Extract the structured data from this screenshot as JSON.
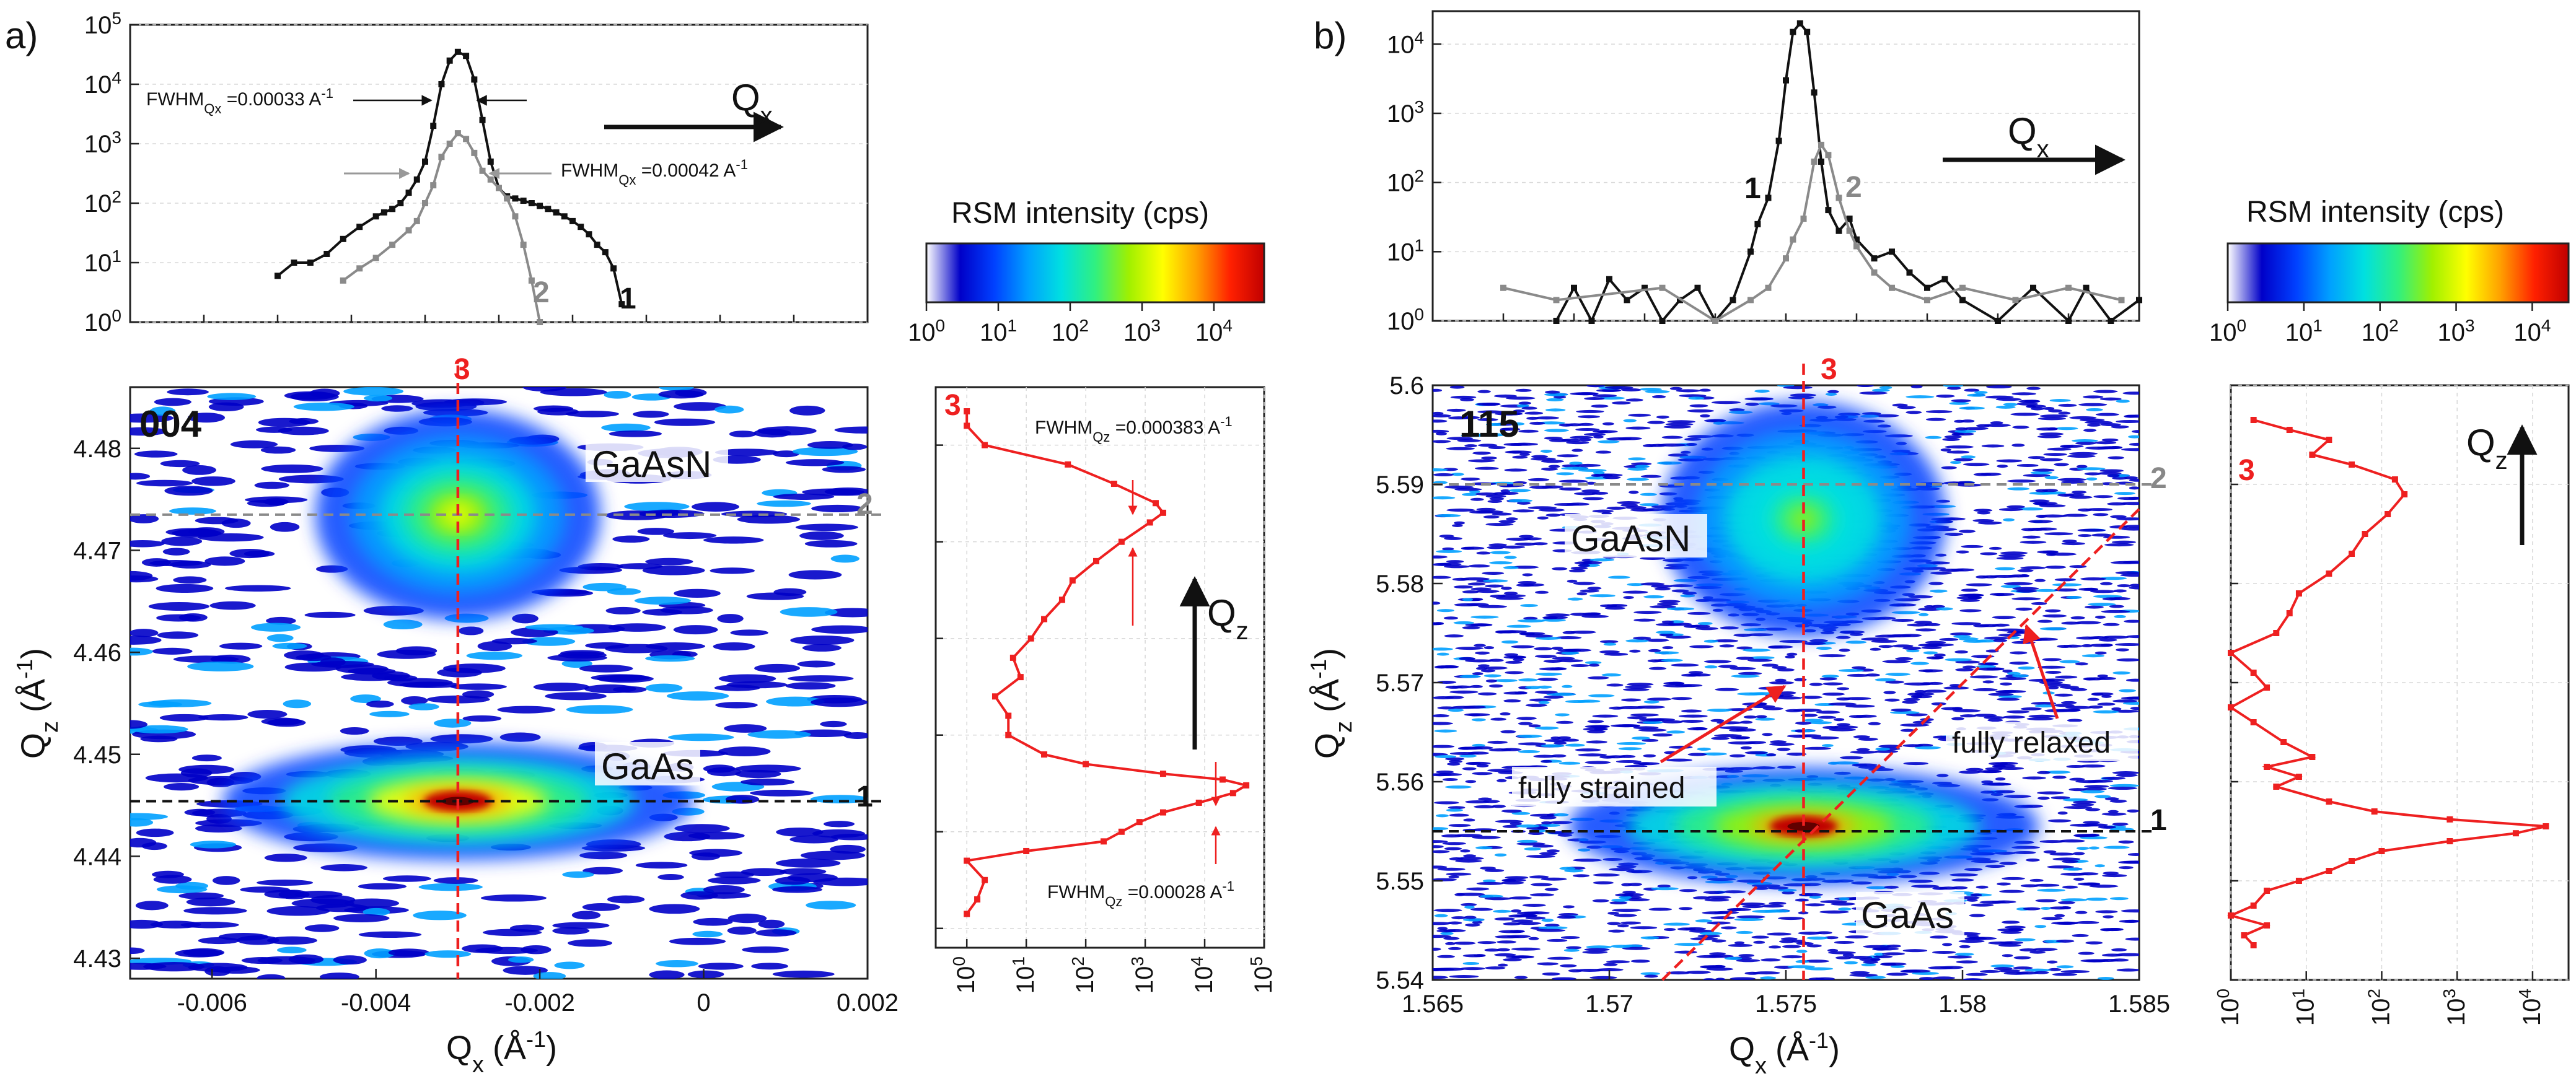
{
  "colors": {
    "black_series": "#111111",
    "grey_series": "#8a8a8a",
    "red_series": "#ee2020",
    "colormap": [
      "#ffffff",
      "#0000c8",
      "#0040ff",
      "#00a0ff",
      "#00e0e0",
      "#30f080",
      "#a0f000",
      "#ffff00",
      "#ffa000",
      "#ff2000",
      "#c00000"
    ]
  },
  "chart_data": [
    {
      "id": "a_top",
      "panel": "a",
      "type": "line",
      "title": "",
      "xlabel": "",
      "ylabel": "",
      "xlim": [
        -0.007,
        0.002
      ],
      "ylim": [
        1,
        100000
      ],
      "yscale": "log",
      "yticks": [
        1,
        10,
        100,
        1000,
        10000,
        100000
      ],
      "ytick_labels": [
        "10",
        "10",
        "10",
        "10",
        "10",
        "10"
      ],
      "ytick_exps": [
        "0",
        "1",
        "2",
        "3",
        "4",
        "5"
      ],
      "arrow_label": "Q",
      "arrow_sub": "x",
      "series": [
        {
          "name": "1",
          "color": "#111111",
          "x": [
            -0.0052,
            -0.005,
            -0.0048,
            -0.0046,
            -0.0044,
            -0.0042,
            -0.004,
            -0.0039,
            -0.0038,
            -0.0037,
            -0.0036,
            -0.0035,
            -0.0034,
            -0.0033,
            -0.0032,
            -0.0031,
            -0.003,
            -0.0029,
            -0.0028,
            -0.0027,
            -0.0026,
            -0.0025,
            -0.0024,
            -0.0023,
            -0.0022,
            -0.0021,
            -0.002,
            -0.0019,
            -0.0018,
            -0.0017,
            -0.0016,
            -0.0015,
            -0.0014,
            -0.0013,
            -0.0012,
            -0.0011,
            -0.001
          ],
          "y": [
            6,
            10,
            10,
            14,
            25,
            40,
            60,
            70,
            80,
            100,
            150,
            250,
            500,
            2000,
            10000,
            25000,
            35000,
            30000,
            12000,
            2500,
            500,
            180,
            130,
            120,
            110,
            100,
            90,
            80,
            70,
            60,
            50,
            40,
            30,
            20,
            15,
            8,
            2
          ]
        },
        {
          "name": "2",
          "color": "#8a8a8a",
          "x": [
            -0.0044,
            -0.0042,
            -0.004,
            -0.0038,
            -0.0036,
            -0.0035,
            -0.0034,
            -0.0033,
            -0.0032,
            -0.0031,
            -0.003,
            -0.0029,
            -0.0028,
            -0.0027,
            -0.0026,
            -0.0025,
            -0.0024,
            -0.0023,
            -0.0022,
            -0.0021,
            -0.002
          ],
          "y": [
            5,
            8,
            12,
            20,
            35,
            50,
            100,
            200,
            600,
            1000,
            1500,
            1200,
            700,
            350,
            250,
            180,
            120,
            60,
            20,
            5,
            1
          ]
        }
      ],
      "annotations": [
        {
          "text": "FWHM",
          "sub": "Qx",
          "value": " =0.00033 A",
          "sup": "-1"
        },
        {
          "text": "FWHM",
          "sub": "Qx",
          "value": " =0.00042 A",
          "sup": "-1"
        }
      ],
      "series_labels": [
        "1",
        "2"
      ]
    },
    {
      "id": "a_map",
      "panel": "a",
      "type": "heatmap",
      "title": "",
      "xlabel": "Q",
      "xlabel_sub": "x",
      "xlabel_units": "(Å",
      "xlabel_sup": "-1",
      "xlabel_close": ")",
      "ylabel": "Q",
      "ylabel_sub": "z",
      "ylabel_units": "(Å",
      "ylabel_sup": "-1",
      "ylabel_close": ")",
      "xlim": [
        -0.007,
        0.002
      ],
      "ylim": [
        4.428,
        4.486
      ],
      "xticks": [
        -0.006,
        -0.004,
        -0.002,
        0,
        0.002
      ],
      "xtick_labels": [
        "-0.006",
        "-0.004",
        "-0.002",
        "0",
        "0.002"
      ],
      "yticks": [
        4.43,
        4.44,
        4.45,
        4.46,
        4.47,
        4.48
      ],
      "ytick_labels": [
        "4.43",
        "4.44",
        "4.45",
        "4.46",
        "4.47",
        "4.48"
      ],
      "reflection": "004",
      "peaks": [
        {
          "label": "GaAsN",
          "qx": -0.003,
          "qz": 4.4735,
          "intensity": 1500
        },
        {
          "label": "GaAs",
          "qx": -0.003,
          "qz": 4.4454,
          "intensity": 35000
        }
      ],
      "lines": [
        {
          "label": "1",
          "orientation": "horizontal",
          "value": 4.4454,
          "color": "#111111"
        },
        {
          "label": "2",
          "orientation": "horizontal",
          "value": 4.4735,
          "color": "#8a8a8a"
        },
        {
          "label": "3",
          "orientation": "vertical",
          "value": -0.003,
          "color": "#ee2020"
        }
      ]
    },
    {
      "id": "a_colorbar",
      "panel": "a",
      "type": "heatmap",
      "title": "RSM intensity (cps)",
      "range": [
        1,
        50000
      ],
      "scale": "log",
      "ticks": [
        1,
        10,
        100,
        1000,
        10000
      ],
      "tick_labels": [
        "10",
        "10",
        "10",
        "10",
        "10"
      ],
      "tick_exps": [
        "0",
        "1",
        "2",
        "3",
        "4"
      ]
    },
    {
      "id": "a_side",
      "panel": "a",
      "type": "line",
      "title": "",
      "xlabel": "",
      "ylabel": "",
      "xlim": [
        0.3,
        100000
      ],
      "xscale": "log",
      "ylim": [
        4.428,
        4.486
      ],
      "xticks": [
        1,
        10,
        100,
        1000,
        10000,
        100000
      ],
      "xtick_labels": [
        "10",
        "10",
        "10",
        "10",
        "10",
        "10"
      ],
      "xtick_exps": [
        "0",
        "1",
        "2",
        "3",
        "4",
        "5"
      ],
      "arrow_label": "Q",
      "arrow_sub": "z",
      "series": [
        {
          "name": "3",
          "color": "#ee2020",
          "qz": [
            4.4315,
            4.433,
            4.435,
            4.437,
            4.438,
            4.439,
            4.44,
            4.441,
            4.442,
            4.443,
            4.444,
            4.4448,
            4.4454,
            4.446,
            4.447,
            4.448,
            4.45,
            4.452,
            4.454,
            4.456,
            4.458,
            4.46,
            4.462,
            4.464,
            4.466,
            4.468,
            4.47,
            4.472,
            4.473,
            4.474,
            4.476,
            4.478,
            4.48,
            4.482,
            4.4835
          ],
          "intensity": [
            1,
            1.5,
            2,
            1,
            10,
            200,
            400,
            800,
            2000,
            8000,
            30000,
            50000,
            20000,
            2000,
            100,
            20,
            5,
            5,
            3,
            8,
            6,
            12,
            20,
            40,
            60,
            150,
            400,
            1200,
            2000,
            1500,
            300,
            50,
            2,
            1,
            1
          ]
        }
      ],
      "annotations": [
        {
          "text": "FWHM",
          "sub": "Qz",
          "value": " =0.000383 A",
          "sup": "-1"
        },
        {
          "text": "FWHM",
          "sub": "Qz",
          "value": " =0.00028 A",
          "sup": "-1"
        }
      ],
      "series_labels": [
        "3"
      ]
    },
    {
      "id": "b_top",
      "panel": "b",
      "type": "line",
      "title": "",
      "xlabel": "",
      "ylabel": "",
      "xlim": [
        1.565,
        1.585
      ],
      "ylim": [
        1,
        30000
      ],
      "yscale": "log",
      "yticks": [
        1,
        10,
        100,
        1000,
        10000
      ],
      "ytick_labels": [
        "10",
        "10",
        "10",
        "10",
        "10"
      ],
      "ytick_exps": [
        "0",
        "1",
        "2",
        "3",
        "4"
      ],
      "arrow_label": "Q",
      "arrow_sub": "x",
      "series": [
        {
          "name": "1",
          "color": "#111111",
          "x": [
            1.5685,
            1.569,
            1.5695,
            1.57,
            1.5705,
            1.571,
            1.5715,
            1.572,
            1.5725,
            1.573,
            1.5735,
            1.574,
            1.5742,
            1.5745,
            1.5748,
            1.575,
            1.5752,
            1.5754,
            1.5756,
            1.5758,
            1.576,
            1.5762,
            1.5765,
            1.5768,
            1.577,
            1.5775,
            1.578,
            1.5785,
            1.579,
            1.5795,
            1.58,
            1.581,
            1.582,
            1.583,
            1.5835,
            1.5842,
            1.585
          ],
          "y": [
            1,
            3,
            1,
            4,
            2,
            3,
            1,
            2,
            3,
            1,
            2,
            10,
            25,
            60,
            400,
            3000,
            15000,
            20000,
            15000,
            2000,
            200,
            40,
            20,
            30,
            15,
            8,
            10,
            5,
            3,
            4,
            2,
            1,
            3,
            1,
            3,
            1,
            2
          ]
        },
        {
          "name": "2",
          "color": "#8a8a8a",
          "x": [
            1.567,
            1.5685,
            1.5715,
            1.573,
            1.574,
            1.5745,
            1.575,
            1.5752,
            1.5755,
            1.5758,
            1.576,
            1.5762,
            1.5765,
            1.5768,
            1.577,
            1.5775,
            1.578,
            1.579,
            1.58,
            1.5815,
            1.583,
            1.5845
          ],
          "y": [
            3,
            2,
            3,
            1,
            2,
            3,
            8,
            15,
            30,
            200,
            350,
            250,
            60,
            20,
            12,
            5,
            3,
            2,
            3,
            2,
            3,
            2
          ]
        }
      ],
      "series_labels": [
        "1",
        "2"
      ]
    },
    {
      "id": "b_map",
      "panel": "b",
      "type": "heatmap",
      "title": "",
      "xlabel": "Q",
      "xlabel_sub": "x",
      "xlabel_units": "(Å",
      "xlabel_sup": "-1",
      "xlabel_close": ")",
      "ylabel": "Q",
      "ylabel_sub": "z",
      "ylabel_units": "(Å",
      "ylabel_sup": "-1",
      "ylabel_close": ")",
      "xlim": [
        1.565,
        1.585
      ],
      "ylim": [
        5.54,
        5.6
      ],
      "xticks": [
        1.565,
        1.57,
        1.575,
        1.58,
        1.585
      ],
      "xtick_labels": [
        "1.565",
        "1.57",
        "1.575",
        "1.58",
        "1.585"
      ],
      "yticks": [
        5.54,
        5.55,
        5.56,
        5.57,
        5.58,
        5.59,
        5.6
      ],
      "ytick_labels": [
        "5.54",
        "5.55",
        "5.56",
        "5.57",
        "5.58",
        "5.59",
        "5.6"
      ],
      "reflection": "115",
      "peaks": [
        {
          "label": "GaAsN",
          "qx": 1.5755,
          "qz": 5.5865,
          "intensity": 400
        },
        {
          "label": "GaAs",
          "qx": 1.5755,
          "qz": 5.5555,
          "intensity": 20000
        }
      ],
      "lines": [
        {
          "label": "1",
          "orientation": "horizontal",
          "value": 5.555,
          "color": "#111111"
        },
        {
          "label": "2",
          "orientation": "horizontal",
          "value": 5.59,
          "color": "#8a8a8a"
        },
        {
          "label": "3",
          "orientation": "vertical",
          "value": 1.5755,
          "color": "#ee2020"
        },
        {
          "label": "fully relaxed",
          "orientation": "diagonal",
          "from": [
            1.5715,
            5.54
          ],
          "to": [
            1.585,
            5.5875
          ],
          "color": "#ee2020"
        }
      ],
      "arrows_text": [
        "fully strained",
        "fully relaxed"
      ]
    },
    {
      "id": "b_colorbar",
      "panel": "b",
      "type": "heatmap",
      "title": "RSM intensity (cps)",
      "range": [
        1,
        30000
      ],
      "scale": "log",
      "ticks": [
        1,
        10,
        100,
        1000,
        10000
      ],
      "tick_labels": [
        "10",
        "10",
        "10",
        "10",
        "10"
      ],
      "tick_exps": [
        "0",
        "1",
        "2",
        "3",
        "4"
      ]
    },
    {
      "id": "b_side",
      "panel": "b",
      "type": "line",
      "title": "",
      "xlabel": "",
      "ylabel": "",
      "xlim": [
        1,
        30000
      ],
      "xscale": "log",
      "ylim": [
        5.54,
        5.6
      ],
      "xticks": [
        1,
        10,
        100,
        1000,
        10000
      ],
      "xtick_labels": [
        "10",
        "10",
        "10",
        "10",
        "10"
      ],
      "xtick_exps": [
        "0",
        "1",
        "2",
        "3",
        "4"
      ],
      "arrow_label": "Q",
      "arrow_sub": "z",
      "series": [
        {
          "name": "3",
          "color": "#ee2020",
          "qz": [
            5.5435,
            5.5445,
            5.5455,
            5.5465,
            5.5475,
            5.549,
            5.55,
            5.551,
            5.552,
            5.553,
            5.554,
            5.5548,
            5.5555,
            5.5562,
            5.557,
            5.558,
            5.5595,
            5.5605,
            5.5615,
            5.5625,
            5.564,
            5.566,
            5.5675,
            5.5695,
            5.571,
            5.573,
            5.575,
            5.577,
            5.579,
            5.581,
            5.583,
            5.585,
            5.587,
            5.589,
            5.5905,
            5.592,
            5.593,
            5.5945,
            5.5955,
            5.5965
          ],
          "intensity": [
            2,
            1.5,
            3,
            1,
            2,
            3,
            8,
            20,
            40,
            100,
            800,
            6000,
            15000,
            800,
            80,
            20,
            4,
            8,
            3,
            12,
            5,
            2,
            1,
            3,
            2,
            1,
            4,
            6,
            8,
            20,
            40,
            60,
            120,
            200,
            150,
            40,
            12,
            20,
            6,
            2
          ]
        }
      ],
      "series_labels": [
        "3"
      ]
    }
  ],
  "labels": {
    "panel_a": "a)",
    "panel_b": "b)"
  }
}
